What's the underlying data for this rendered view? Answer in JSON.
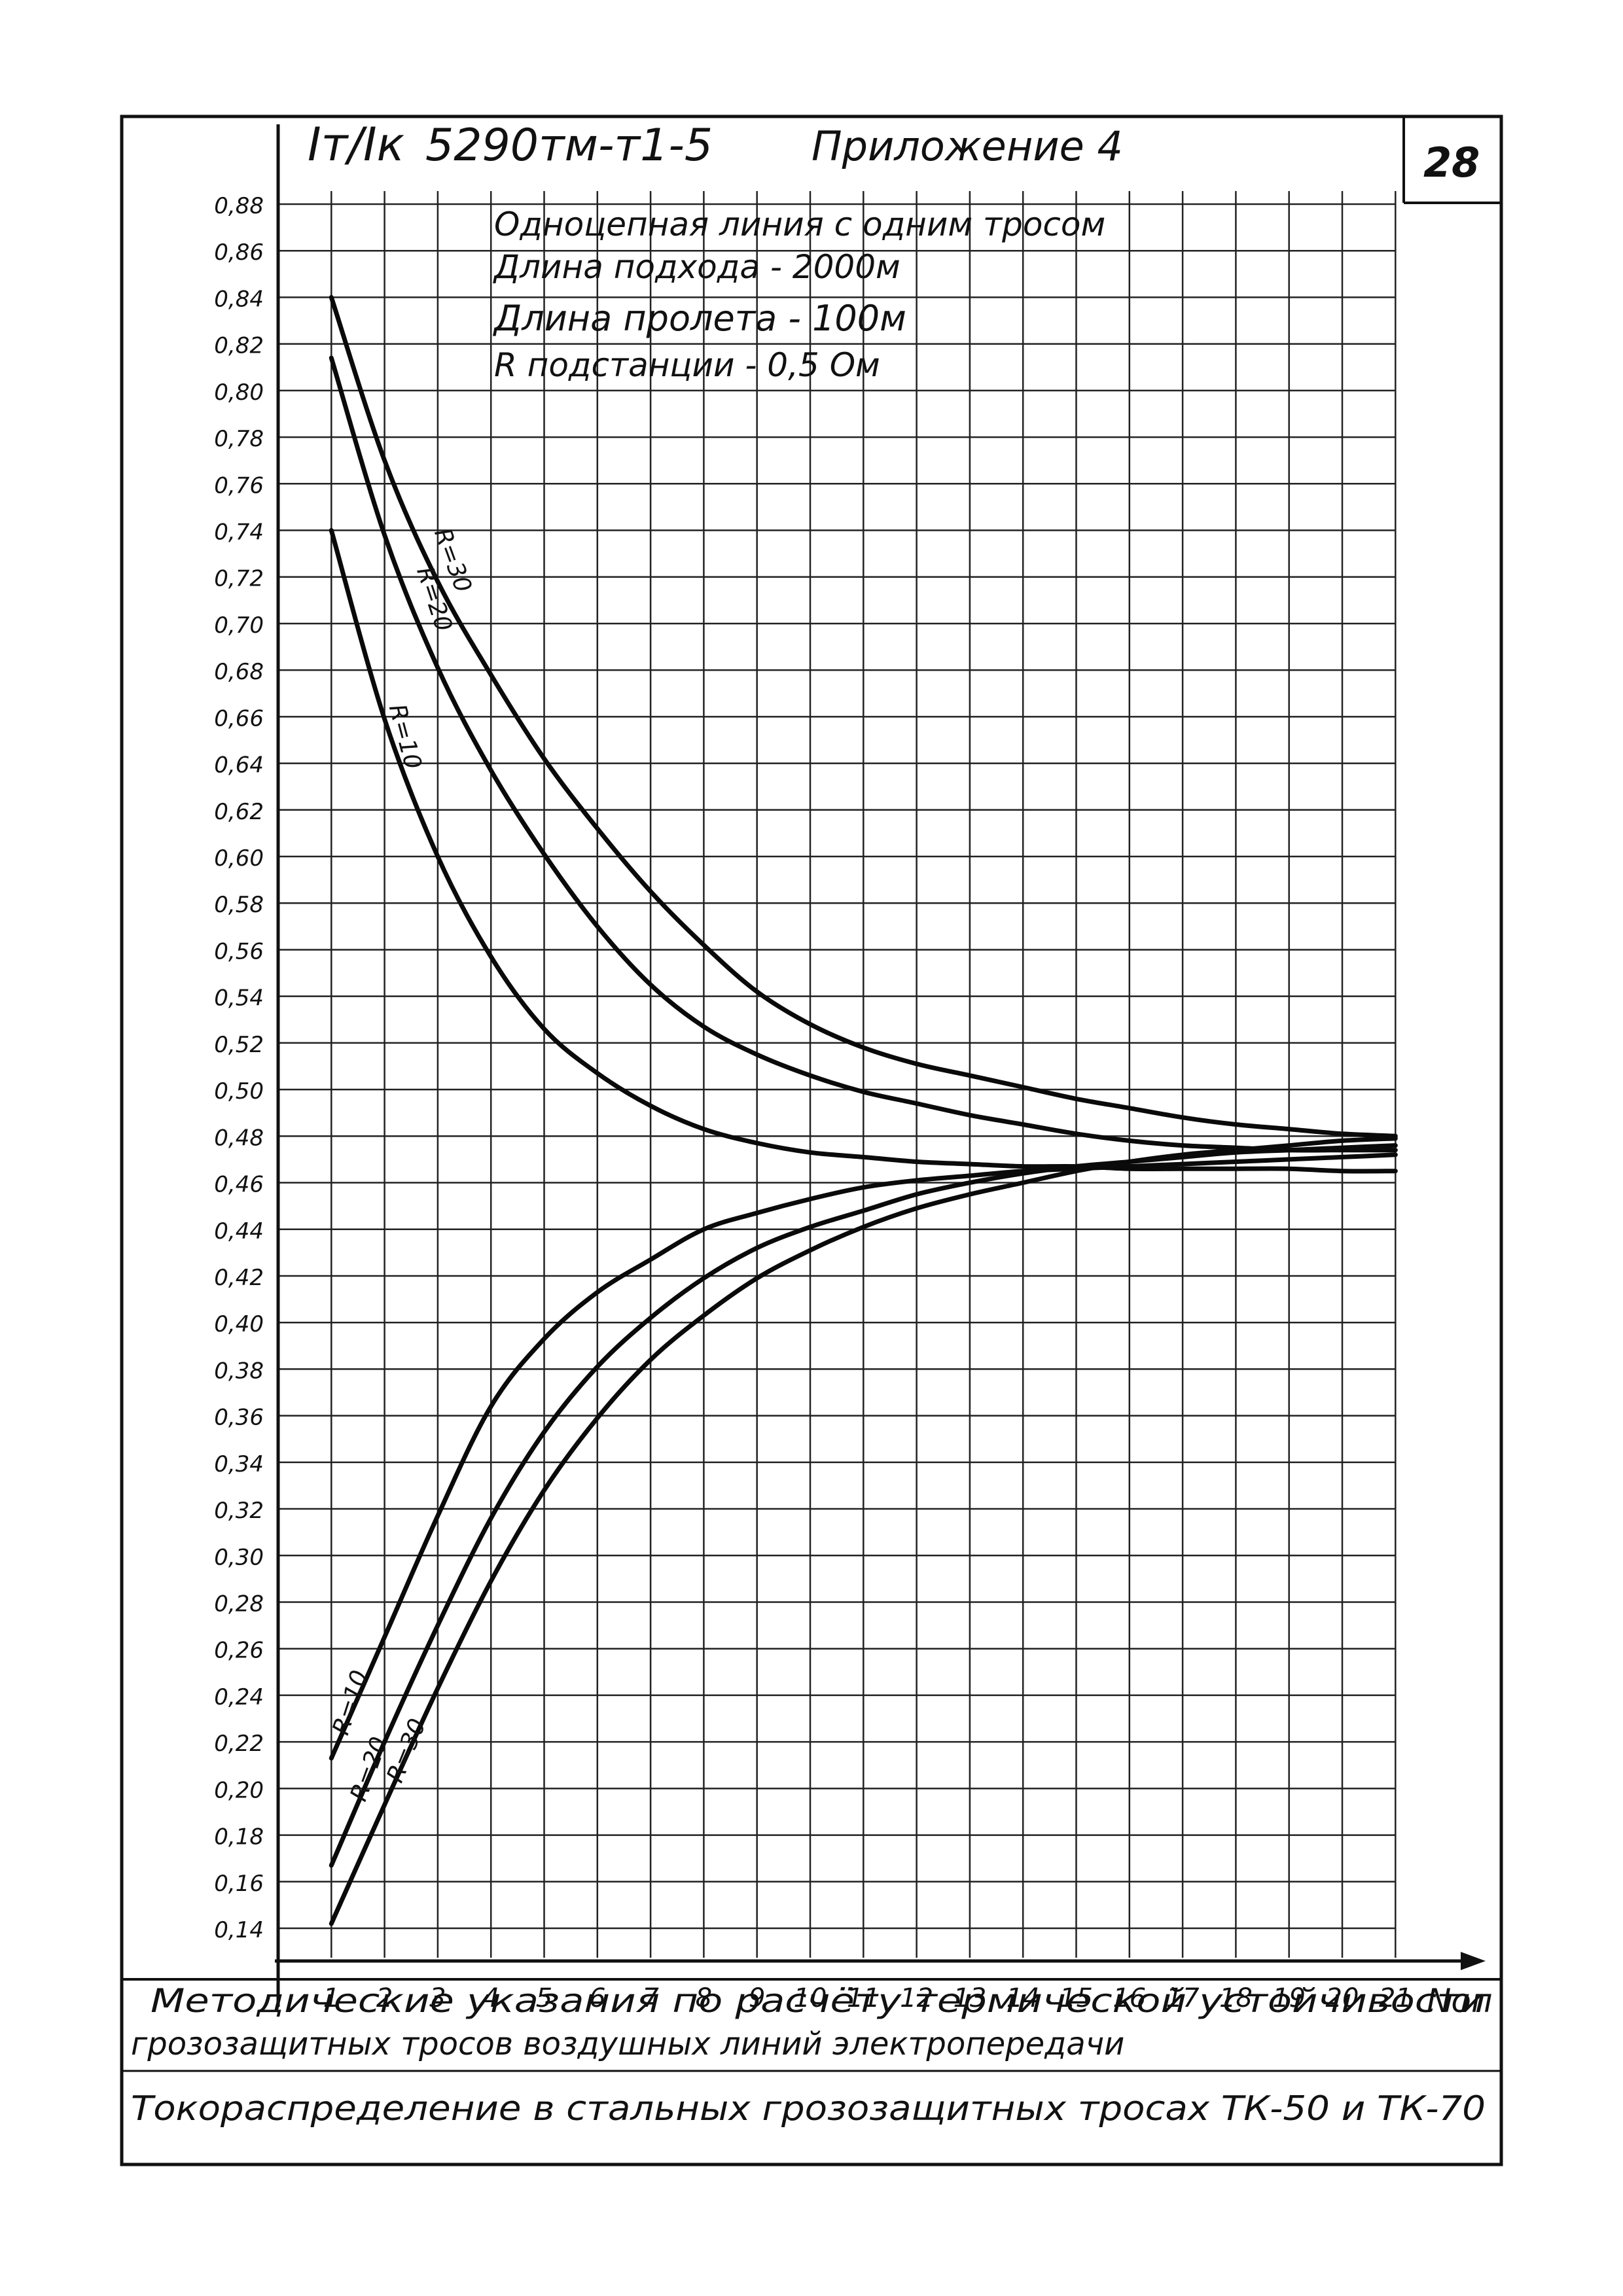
{
  "header": {
    "ratio_label": "Iт/Iк",
    "code": "5290тм-т1-5",
    "appendix": "Приложение 4",
    "page_number": "28"
  },
  "notes": {
    "line1": "Одноцепная линия с одним тросом",
    "line2": "Длина подхода - 2000м",
    "line3": "Длина пролета - 100м",
    "line4": "R подстанции - 0,5 Ом"
  },
  "footer": {
    "line1": "Методические указания по расчёту термической устойчивости",
    "line2": "грозозащитных тросов воздушных линий электропередачи",
    "line3": "Токораспределение в стальных грозозащитных тросах ТК-50 и ТК-70"
  },
  "chart_data": {
    "type": "line",
    "title": "",
    "xlabel": "Nоп",
    "ylabel": "Iт/Iк",
    "xlim": [
      0,
      21
    ],
    "ylim": [
      0.14,
      0.88
    ],
    "grid": true,
    "x_ticks": [
      "1",
      "2",
      "3",
      "4",
      "5",
      "6",
      "7",
      "8",
      "9",
      "10",
      "11",
      "12",
      "13",
      "14",
      "15",
      "16",
      "17",
      "18",
      "19",
      "20",
      "21"
    ],
    "y_ticks": [
      "0,88",
      "0,86",
      "0,84",
      "0,82",
      "0,80",
      "0,78",
      "0,76",
      "0,74",
      "0,72",
      "0,70",
      "0,68",
      "0,66",
      "0,64",
      "0,62",
      "0,60",
      "0,58",
      "0,56",
      "0,54",
      "0,52",
      "0,50",
      "0,48",
      "0,46",
      "0,44",
      "0,42",
      "0,40",
      "0,38",
      "0,36",
      "0,34",
      "0,32",
      "0,30",
      "0,28",
      "0,26",
      "0,24",
      "0,22",
      "0,20",
      "0,18",
      "0,16",
      "0,14"
    ],
    "x": [
      1,
      2,
      3,
      4,
      5,
      6,
      7,
      8,
      9,
      10,
      11,
      12,
      13,
      14,
      15,
      16,
      17,
      18,
      19,
      20,
      21
    ],
    "series": [
      {
        "name": "R=30",
        "group": "upper",
        "values": [
          0.84,
          0.77,
          0.718,
          0.678,
          0.642,
          0.612,
          0.585,
          0.562,
          0.542,
          0.528,
          0.518,
          0.511,
          0.506,
          0.501,
          0.496,
          0.492,
          0.488,
          0.485,
          0.483,
          0.481,
          0.48
        ]
      },
      {
        "name": "R=20",
        "group": "upper",
        "values": [
          0.814,
          0.738,
          0.681,
          0.637,
          0.601,
          0.57,
          0.545,
          0.527,
          0.515,
          0.506,
          0.499,
          0.494,
          0.489,
          0.485,
          0.481,
          0.478,
          0.476,
          0.475,
          0.474,
          0.474,
          0.474
        ]
      },
      {
        "name": "R=10",
        "group": "upper",
        "values": [
          0.74,
          0.659,
          0.6,
          0.557,
          0.526,
          0.507,
          0.493,
          0.483,
          0.477,
          0.473,
          0.471,
          0.469,
          0.468,
          0.467,
          0.467,
          0.466,
          0.466,
          0.466,
          0.466,
          0.465,
          0.465
        ]
      },
      {
        "name": "R=10",
        "group": "lower",
        "values": [
          0.213,
          0.265,
          0.317,
          0.364,
          0.393,
          0.413,
          0.427,
          0.44,
          0.447,
          0.453,
          0.458,
          0.461,
          0.463,
          0.465,
          0.466,
          0.467,
          0.468,
          0.469,
          0.47,
          0.471,
          0.472
        ]
      },
      {
        "name": "R=20",
        "group": "lower",
        "values": [
          0.167,
          0.22,
          0.27,
          0.316,
          0.353,
          0.381,
          0.402,
          0.419,
          0.432,
          0.441,
          0.448,
          0.455,
          0.46,
          0.464,
          0.467,
          0.469,
          0.471,
          0.473,
          0.474,
          0.475,
          0.476
        ]
      },
      {
        "name": "R=30",
        "group": "lower",
        "values": [
          0.142,
          0.193,
          0.243,
          0.289,
          0.328,
          0.359,
          0.384,
          0.403,
          0.419,
          0.431,
          0.441,
          0.449,
          0.455,
          0.46,
          0.465,
          0.469,
          0.472,
          0.474,
          0.476,
          0.478,
          0.479
        ]
      }
    ]
  }
}
